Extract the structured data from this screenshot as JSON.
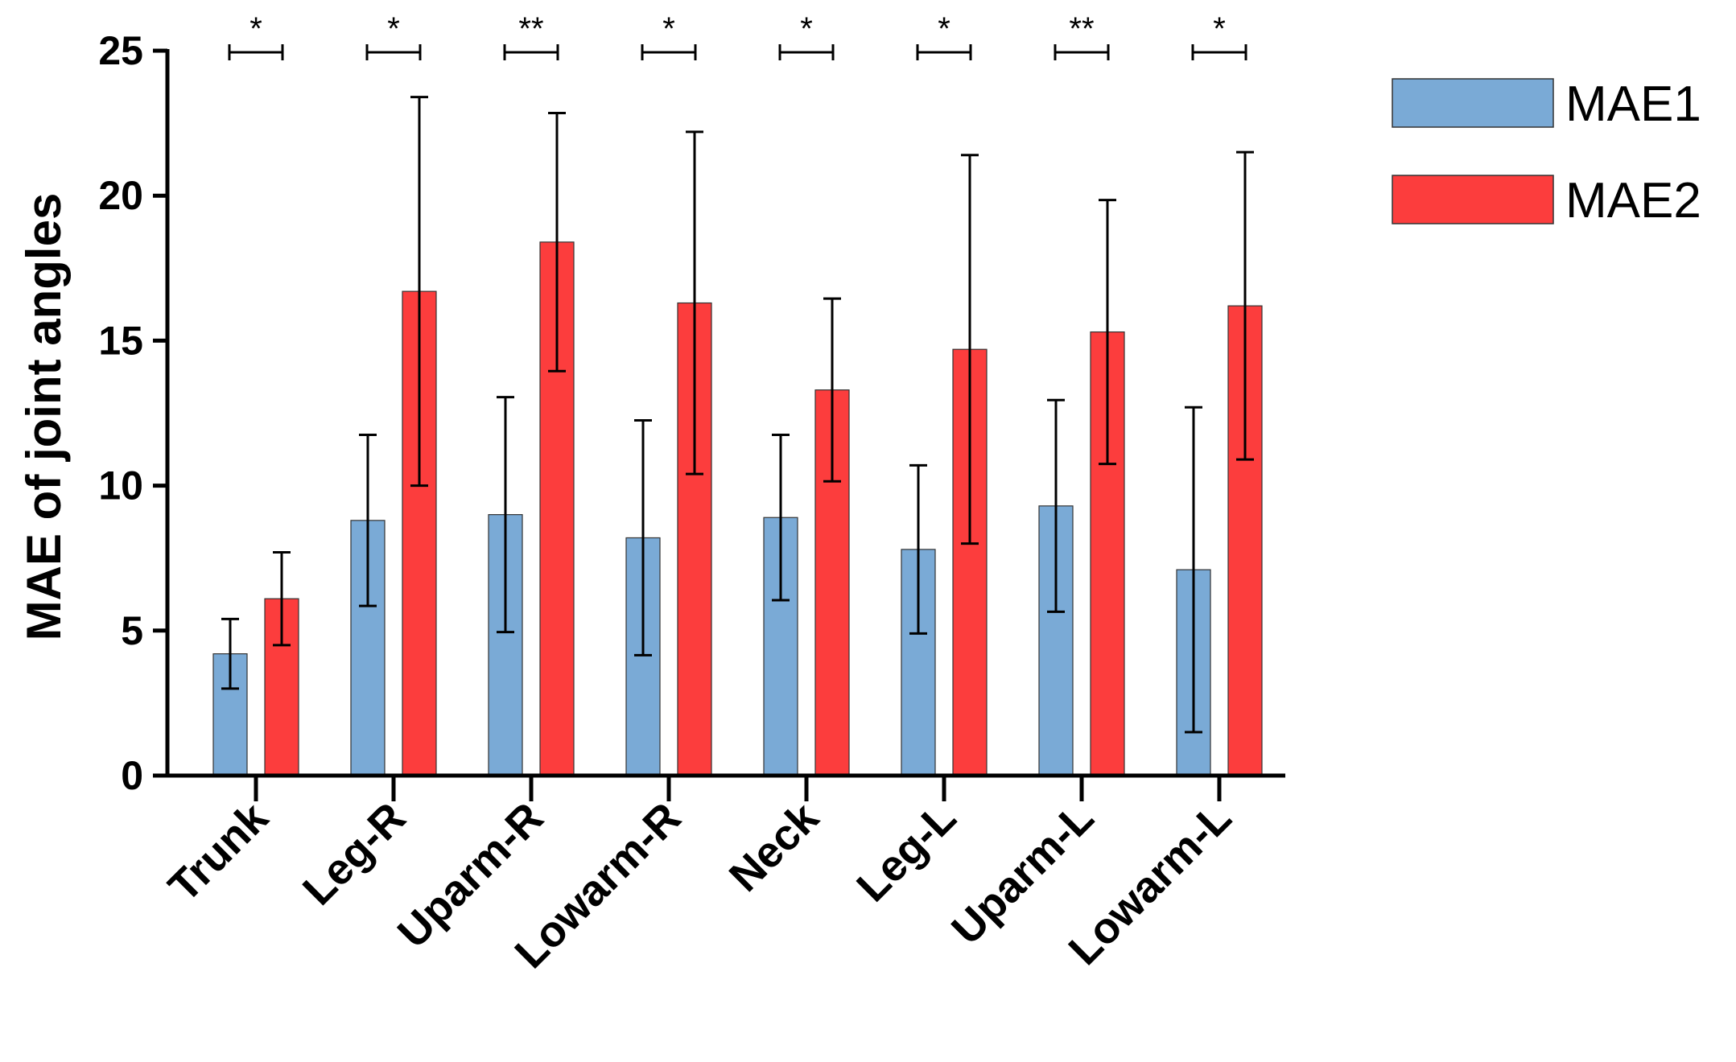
{
  "chart_data": {
    "type": "bar",
    "title": "",
    "xlabel": "",
    "ylabel": "MAE of joint angles",
    "ylim": [
      0,
      25
    ],
    "yticks": [
      0,
      5,
      10,
      15,
      20,
      25
    ],
    "grid": false,
    "legend_position": "top-right",
    "categories": [
      "Trunk",
      "Leg-R",
      "Uparm-R",
      "Lowarm-R",
      "Neck",
      "Leg-L",
      "Uparm-L",
      "Lowarm-L"
    ],
    "series": [
      {
        "name": "MAE1",
        "color": "#7aaad6",
        "values": [
          4.2,
          8.8,
          9.0,
          8.2,
          8.9,
          7.8,
          9.3,
          7.1
        ],
        "error": [
          1.2,
          2.95,
          4.05,
          4.05,
          2.85,
          2.9,
          3.65,
          5.6
        ]
      },
      {
        "name": "MAE2",
        "color": "#fc3d3d",
        "values": [
          6.1,
          16.7,
          18.4,
          16.3,
          13.3,
          14.7,
          15.3,
          16.2
        ],
        "error": [
          1.6,
          6.7,
          4.45,
          5.9,
          3.15,
          6.7,
          4.55,
          5.3
        ]
      }
    ],
    "significance": [
      "*",
      "*",
      "**",
      "*",
      "*",
      "*",
      "**",
      "*"
    ]
  }
}
